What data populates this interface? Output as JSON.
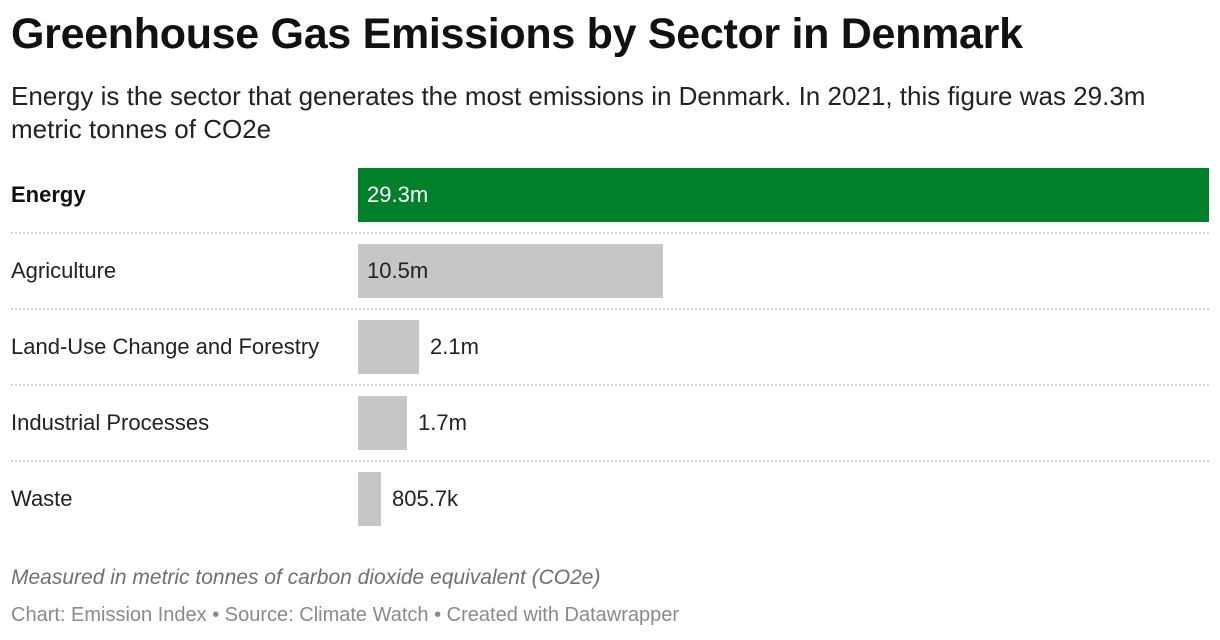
{
  "title": "Greenhouse Gas Emissions by Sector in Denmark",
  "subtitle": "Energy is the sector that generates the most emissions in Denmark. In 2021, this figure was 29.3m metric tonnes of CO2e",
  "notes": "Measured in metric tonnes of carbon dioxide equivalent (CO2e)",
  "footer": {
    "chart": "Chart: Emission Index",
    "separator_1": " • ",
    "source": "Source: Climate Watch",
    "separator_2": " • ",
    "created": "Created with Datawrapper"
  },
  "colors": {
    "highlight": "#00802b",
    "default_bar": "#c6c6c6",
    "value_on_highlight": "#ffffff",
    "value_default": "#222222"
  },
  "chart_data": {
    "type": "bar",
    "orientation": "horizontal",
    "categories": [
      "Energy",
      "Agriculture",
      "Land-Use Change and Forestry",
      "Industrial Processes",
      "Waste"
    ],
    "values": [
      29300000,
      10500000,
      2100000,
      1700000,
      805700
    ],
    "value_labels": [
      "29.3m",
      "10.5m",
      "2.1m",
      "1.7m",
      "805.7k"
    ],
    "highlighted": [
      "Energy"
    ],
    "xlim": [
      0,
      29300000
    ],
    "grid": false,
    "legend": "none"
  }
}
